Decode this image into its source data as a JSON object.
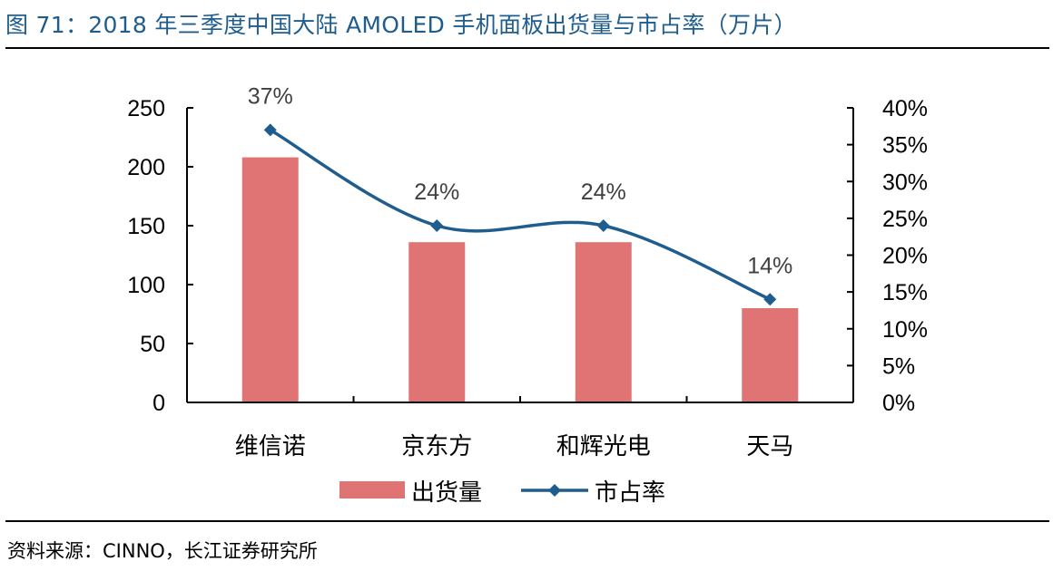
{
  "title": "图 71：2018 年三季度中国大陆 AMOLED 手机面板出货量与市占率（万片）",
  "source": "资料来源：CINNO，长江证券研究所",
  "colors": {
    "bar": "#E07474",
    "line": "#1F5D8F",
    "title": "#1F5D8F"
  },
  "chart_data": {
    "type": "bar",
    "categories": [
      "维信诺",
      "京东方",
      "和辉光电",
      "天马"
    ],
    "series": [
      {
        "name": "出货量",
        "type": "bar",
        "axis": "left",
        "values": [
          208,
          136,
          136,
          80
        ]
      },
      {
        "name": "市占率",
        "type": "line",
        "axis": "right",
        "smooth": true,
        "marker": "diamond",
        "values": [
          37,
          24,
          24,
          14
        ],
        "data_labels": [
          "37%",
          "24%",
          "24%",
          "14%"
        ]
      }
    ],
    "y_left": {
      "lim": [
        0,
        250
      ],
      "ticks": [
        "0",
        "50",
        "100",
        "150",
        "200",
        "250"
      ]
    },
    "y_right": {
      "lim": [
        0,
        40
      ],
      "ticks": [
        "0%",
        "5%",
        "10%",
        "15%",
        "20%",
        "25%",
        "30%",
        "35%",
        "40%"
      ]
    },
    "grid": false,
    "legend": "bottom"
  }
}
